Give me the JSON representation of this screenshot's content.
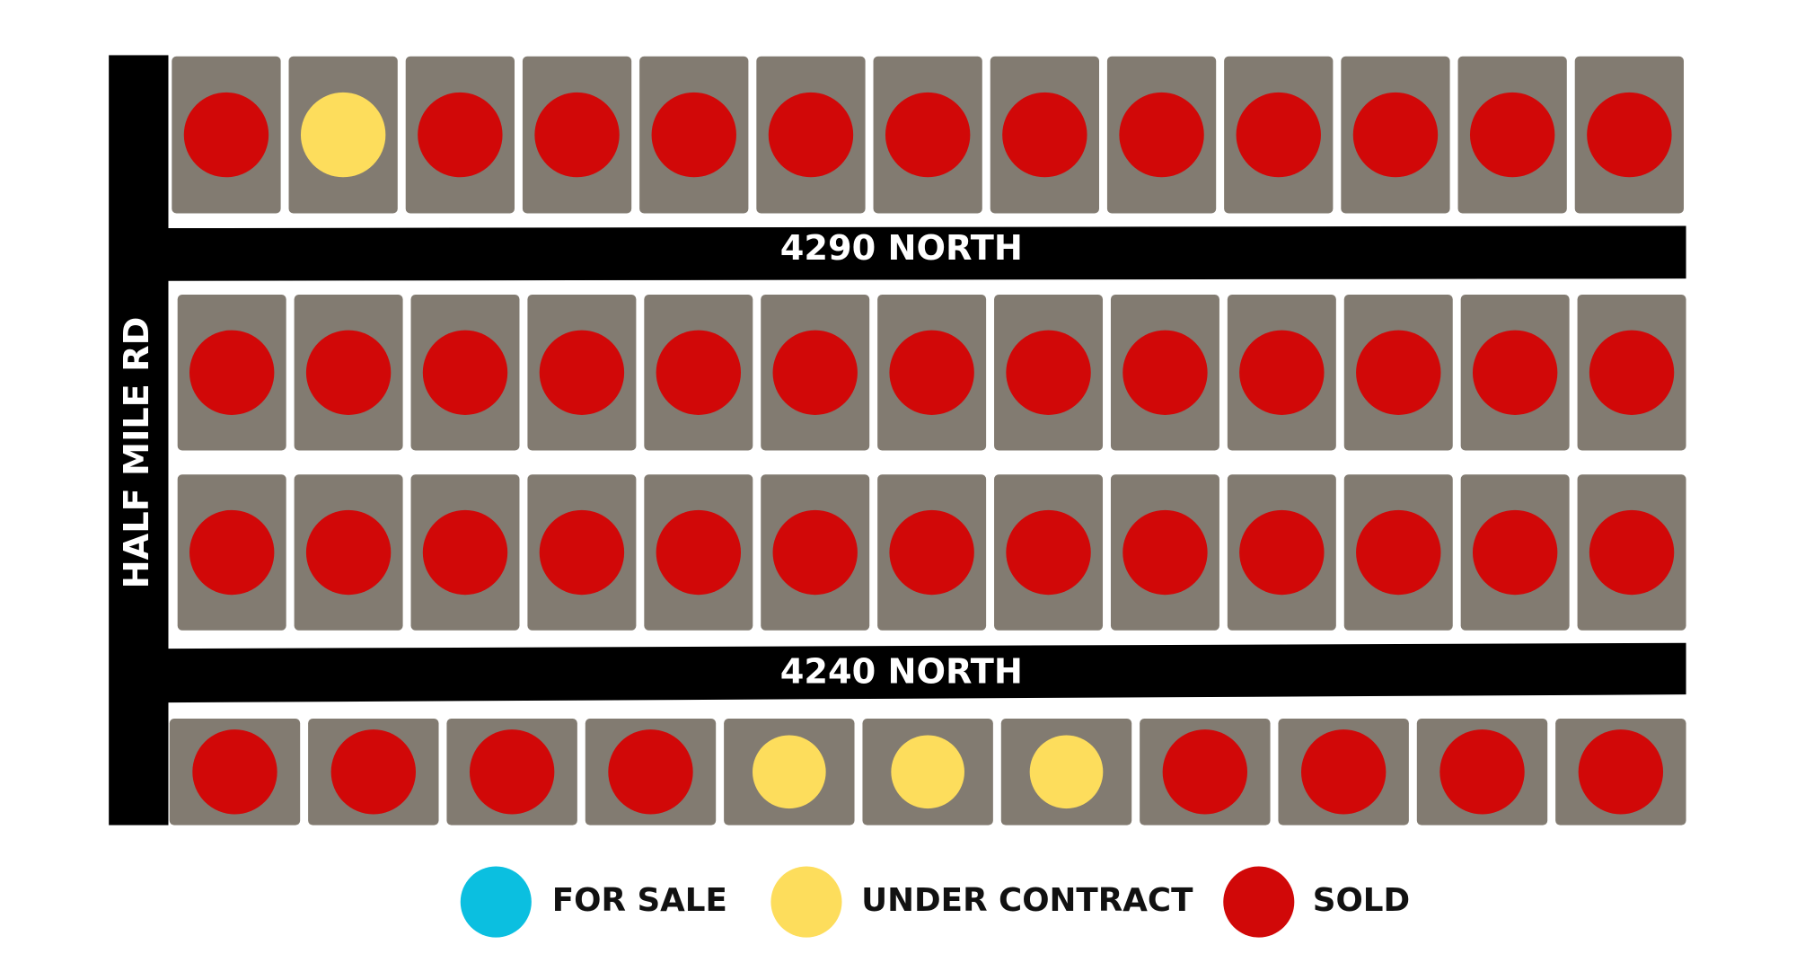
{
  "roads": [
    {
      "label": "HALF MILE RD"
    },
    {
      "label": "4290 NORTH"
    },
    {
      "label": "4240 NORTH"
    }
  ],
  "legend": [
    {
      "label": "FOR SALE",
      "color": "#0bbfe0"
    },
    {
      "label": "UNDER CONTRACT",
      "color": "#fddd5c"
    },
    {
      "label": "SOLD",
      "color": "#d10808"
    }
  ],
  "lot_color": "#827b71",
  "rows": [
    [
      "#d10808",
      "#fddd5c",
      "#d10808",
      "#d10808",
      "#d10808",
      "#d10808",
      "#d10808",
      "#d10808",
      "#d10808",
      "#d10808",
      "#d10808",
      "#d10808",
      "#d10808"
    ],
    [
      "#d10808",
      "#d10808",
      "#d10808",
      "#d10808",
      "#d10808",
      "#d10808",
      "#d10808",
      "#d10808",
      "#d10808",
      "#d10808",
      "#d10808",
      "#d10808",
      "#d10808"
    ],
    [
      "#d10808",
      "#d10808",
      "#d10808",
      "#d10808",
      "#d10808",
      "#d10808",
      "#d10808",
      "#d10808",
      "#d10808",
      "#d10808",
      "#d10808",
      "#d10808",
      "#d10808"
    ],
    [
      "#d10808",
      "#d10808",
      "#d10808",
      "#d10808",
      "#fddd5c",
      "#fddd5c",
      "#fddd5c",
      "#d10808",
      "#d10808",
      "#d10808",
      "#d10808"
    ]
  ]
}
